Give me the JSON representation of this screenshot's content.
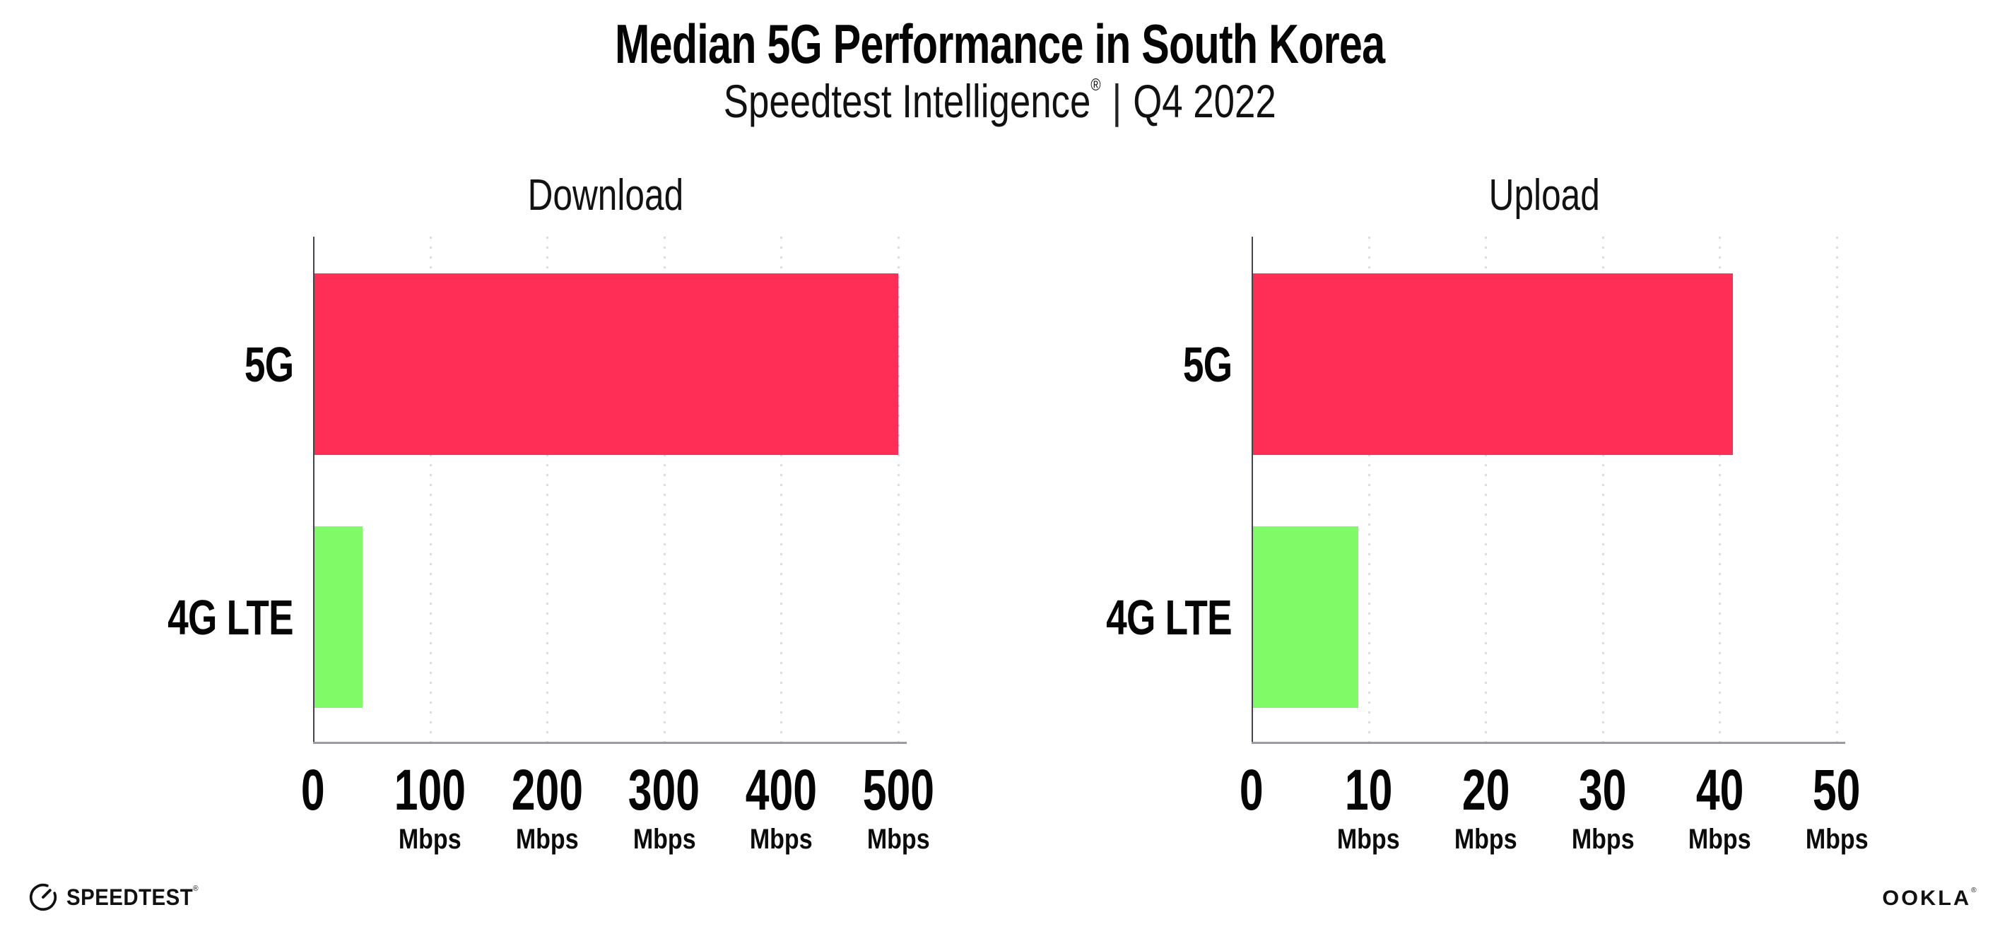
{
  "header": {
    "title": "Median 5G Performance in South Korea",
    "subtitle_brand": "Speedtest Intelligence",
    "subtitle_reg": "®",
    "subtitle_sep": "|",
    "subtitle_period": "Q4 2022"
  },
  "colors": {
    "bar_5g": "#FF2E57",
    "bar_4g_lte": "#80FB67",
    "gridline": "#DCDCE6",
    "axis_left": "#43434C",
    "axis_bottom": "#9B9BA3",
    "text": "#050505"
  },
  "chart_data": [
    {
      "type": "bar",
      "orientation": "horizontal",
      "title": "Download",
      "categories": [
        "5G",
        "4G LTE"
      ],
      "values": [
        499,
        41
      ],
      "unit": "Mbps",
      "xlim": [
        0,
        500
      ],
      "xticks": [
        0,
        100,
        200,
        300,
        400,
        500
      ],
      "tick_unit": "Mbps",
      "bar_colors": [
        "#FF2E57",
        "#80FB67"
      ],
      "grid": "vertical-dotted",
      "legend": "none"
    },
    {
      "type": "bar",
      "orientation": "horizontal",
      "title": "Upload",
      "categories": [
        "5G",
        "4G LTE"
      ],
      "values": [
        41,
        9
      ],
      "unit": "Mbps",
      "xlim": [
        0,
        50
      ],
      "xticks": [
        0,
        10,
        20,
        30,
        40,
        50
      ],
      "tick_unit": "Mbps",
      "bar_colors": [
        "#FF2E57",
        "#80FB67"
      ],
      "grid": "vertical-dotted",
      "legend": "none"
    }
  ],
  "footer": {
    "speedtest_logo_text": "SPEEDTEST",
    "speedtest_reg": "®",
    "ookla_logo_text": "OOKLA",
    "ookla_reg": "®"
  }
}
